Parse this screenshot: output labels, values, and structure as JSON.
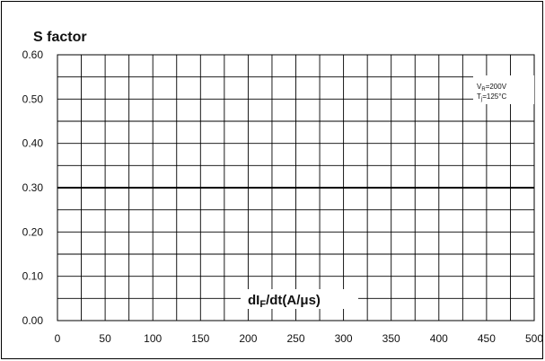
{
  "chart_data": {
    "type": "line",
    "title": "S factor",
    "xlabel_parts": {
      "pre": "dI",
      "sub": "F",
      "post": "/dt(A/μs)"
    },
    "ylabel": "",
    "xlim": [
      0,
      500
    ],
    "ylim": [
      0,
      0.6
    ],
    "x_ticks": [
      0,
      50,
      100,
      150,
      200,
      250,
      300,
      350,
      400,
      450,
      500
    ],
    "y_ticks": [
      "0.00",
      "0.10",
      "0.20",
      "0.30",
      "0.40",
      "0.50",
      "0.60"
    ],
    "grid": true,
    "conditions": [
      {
        "pre": "V",
        "sub": "R",
        "post": "=200V"
      },
      {
        "pre": "T",
        "sub": "j",
        "post": "=125°C"
      }
    ],
    "series": [
      {
        "x": [
          0,
          500
        ],
        "y": [
          0.3,
          0.3
        ],
        "color": "#000000"
      }
    ]
  }
}
